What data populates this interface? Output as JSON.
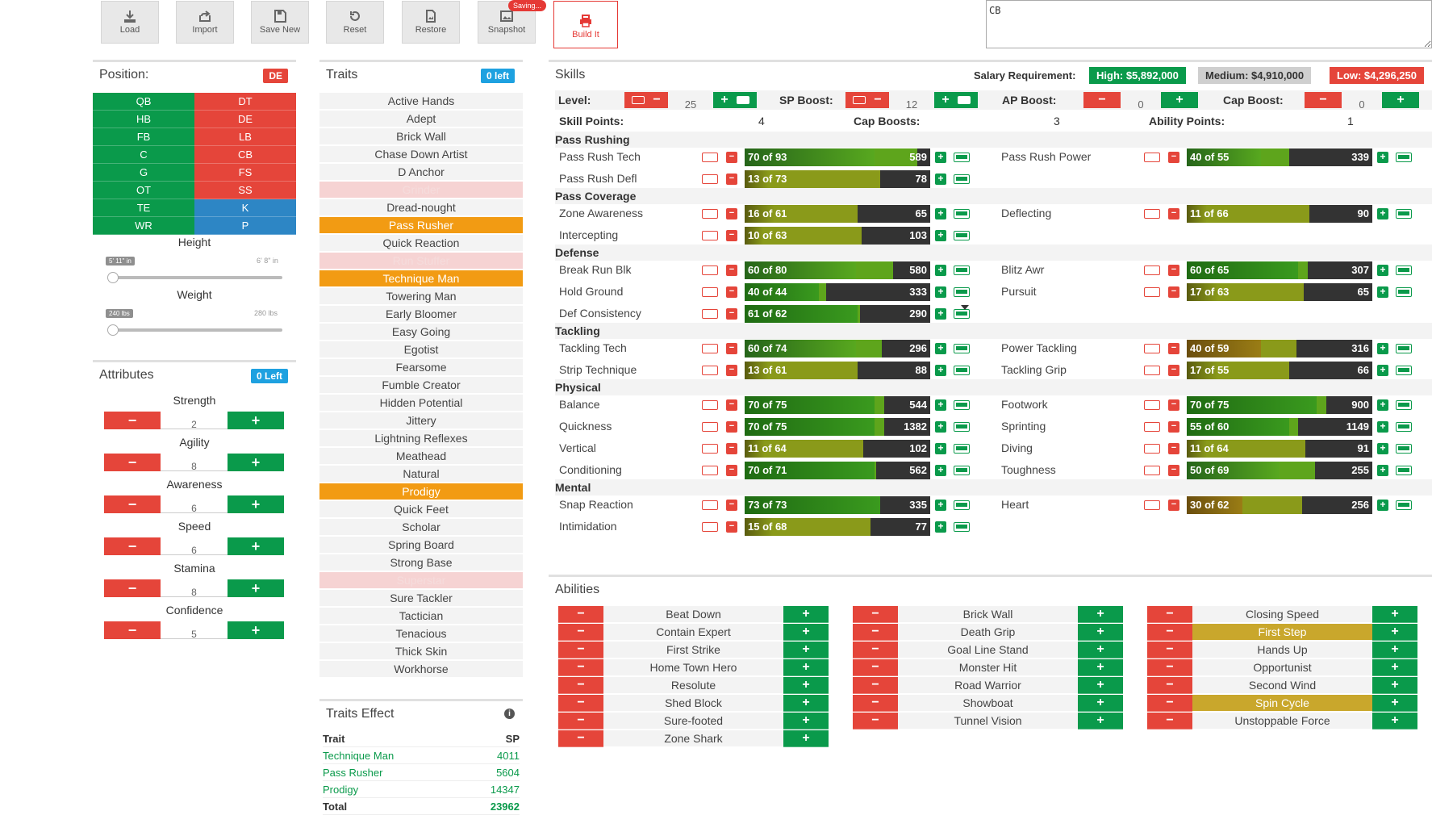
{
  "toolbar": {
    "load": "Load",
    "import": "Import",
    "save_new": "Save New",
    "reset": "Reset",
    "restore": "Restore",
    "snapshot": "Snapshot",
    "saving": "Saving...",
    "build": "Build It"
  },
  "cb_box": "CB",
  "position": {
    "title": "Position:",
    "badge": "DE",
    "left": [
      "QB",
      "HB",
      "FB",
      "C",
      "G",
      "OT",
      "TE",
      "WR"
    ],
    "right": [
      "DT",
      "DE",
      "LB",
      "CB",
      "FS",
      "SS",
      "K",
      "P"
    ],
    "height_label": "Height",
    "height_min": "5' 11\" in",
    "height_max": "6' 8\" in",
    "weight_label": "Weight",
    "weight_min": "240 lbs",
    "weight_max": "280 lbs"
  },
  "attributes": {
    "title": "Attributes",
    "badge": "0 Left",
    "items": [
      {
        "name": "Strength",
        "value": "2"
      },
      {
        "name": "Agility",
        "value": "8"
      },
      {
        "name": "Awareness",
        "value": "6"
      },
      {
        "name": "Speed",
        "value": "6"
      },
      {
        "name": "Stamina",
        "value": "8"
      },
      {
        "name": "Confidence",
        "value": "5"
      }
    ]
  },
  "traits": {
    "title": "Traits",
    "badge": "0 left",
    "items": [
      {
        "name": "Active Hands",
        "state": "normal"
      },
      {
        "name": "Adept",
        "state": "normal"
      },
      {
        "name": "Brick Wall",
        "state": "normal"
      },
      {
        "name": "Chase Down Artist",
        "state": "normal"
      },
      {
        "name": "D Anchor",
        "state": "normal"
      },
      {
        "name": "Grinder",
        "state": "disabled"
      },
      {
        "name": "Dread-nought",
        "state": "normal"
      },
      {
        "name": "Pass Rusher",
        "state": "selected"
      },
      {
        "name": "Quick Reaction",
        "state": "normal"
      },
      {
        "name": "Run Stuffer",
        "state": "disabled"
      },
      {
        "name": "Technique Man",
        "state": "selected"
      },
      {
        "name": "Towering Man",
        "state": "normal"
      },
      {
        "name": "Early Bloomer",
        "state": "normal"
      },
      {
        "name": "Easy Going",
        "state": "normal"
      },
      {
        "name": "Egotist",
        "state": "normal"
      },
      {
        "name": "Fearsome",
        "state": "normal"
      },
      {
        "name": "Fumble Creator",
        "state": "normal"
      },
      {
        "name": "Hidden Potential",
        "state": "normal"
      },
      {
        "name": "Jittery",
        "state": "normal"
      },
      {
        "name": "Lightning Reflexes",
        "state": "normal"
      },
      {
        "name": "Meathead",
        "state": "normal"
      },
      {
        "name": "Natural",
        "state": "normal"
      },
      {
        "name": "Prodigy",
        "state": "selected"
      },
      {
        "name": "Quick Feet",
        "state": "normal"
      },
      {
        "name": "Scholar",
        "state": "normal"
      },
      {
        "name": "Spring Board",
        "state": "normal"
      },
      {
        "name": "Strong Base",
        "state": "normal"
      },
      {
        "name": "Superstar",
        "state": "disabled"
      },
      {
        "name": "Sure Tackler",
        "state": "normal"
      },
      {
        "name": "Tactician",
        "state": "normal"
      },
      {
        "name": "Tenacious",
        "state": "normal"
      },
      {
        "name": "Thick Skin",
        "state": "normal"
      },
      {
        "name": "Workhorse",
        "state": "normal"
      }
    ]
  },
  "traits_effect": {
    "title": "Traits Effect",
    "col_trait": "Trait",
    "col_sp": "SP",
    "rows": [
      {
        "trait": "Technique Man",
        "sp": "4011"
      },
      {
        "trait": "Pass Rusher",
        "sp": "5604"
      },
      {
        "trait": "Prodigy",
        "sp": "14347"
      }
    ],
    "total_label": "Total",
    "total_value": "23962"
  },
  "skills": {
    "title": "Skills",
    "salary_label": "Salary Requirement:",
    "salary_high": "High: $5,892,000",
    "salary_medium": "Medium: $4,910,000",
    "salary_low": "Low: $4,296,250",
    "level_label": "Level:",
    "level_value": "25",
    "sp_boost_label": "SP Boost:",
    "sp_boost_value": "12",
    "ap_boost_label": "AP Boost:",
    "ap_boost_value": "0",
    "cap_boost_label": "Cap Boost:",
    "cap_boost_value": "0",
    "skill_points_label": "Skill Points:",
    "skill_points_value": "4",
    "cap_boosts_label": "Cap Boosts:",
    "cap_boosts_value": "3",
    "ability_points_label": "Ability Points:",
    "ability_points_value": "1",
    "categories": [
      {
        "name": "Pass Rushing",
        "rows": [
          [
            {
              "name": "Pass Rush Tech",
              "label": "70 of 93",
              "cost": "589",
              "cur": 70,
              "cap": 93
            },
            {
              "name": "Pass Rush Power",
              "label": "40 of 55",
              "cost": "339",
              "cur": 40,
              "cap": 55
            }
          ],
          [
            {
              "name": "Pass Rush Defl",
              "label": "13 of 73",
              "cost": "78",
              "cur": 13,
              "cap": 73
            },
            null
          ]
        ]
      },
      {
        "name": "Pass Coverage",
        "rows": [
          [
            {
              "name": "Zone Awareness",
              "label": "16 of 61",
              "cost": "65",
              "cur": 16,
              "cap": 61
            },
            {
              "name": "Deflecting",
              "label": "11 of 66",
              "cost": "90",
              "cur": 11,
              "cap": 66
            }
          ],
          [
            {
              "name": "Intercepting",
              "label": "10 of 63",
              "cost": "103",
              "cur": 10,
              "cap": 63
            },
            null
          ]
        ]
      },
      {
        "name": "Defense",
        "rows": [
          [
            {
              "name": "Break Run Blk",
              "label": "60 of 80",
              "cost": "580",
              "cur": 60,
              "cap": 80
            },
            {
              "name": "Blitz Awr",
              "label": "60 of 65",
              "cost": "307",
              "cur": 60,
              "cap": 65
            }
          ],
          [
            {
              "name": "Hold Ground",
              "label": "40 of 44",
              "cost": "333",
              "cur": 40,
              "cap": 44
            },
            {
              "name": "Pursuit",
              "label": "17 of 63",
              "cost": "65",
              "cur": 17,
              "cap": 63
            }
          ],
          [
            {
              "name": "Def Consistency",
              "label": "61 of 62",
              "cost": "290",
              "cur": 61,
              "cap": 62
            },
            null
          ]
        ]
      },
      {
        "name": "Tackling",
        "rows": [
          [
            {
              "name": "Tackling Tech",
              "label": "60 of 74",
              "cost": "296",
              "cur": 60,
              "cap": 74
            },
            {
              "name": "Power Tackling",
              "label": "40 of 59",
              "cost": "316",
              "cur": 40,
              "cap": 59
            }
          ],
          [
            {
              "name": "Strip Technique",
              "label": "13 of 61",
              "cost": "88",
              "cur": 13,
              "cap": 61
            },
            {
              "name": "Tackling Grip",
              "label": "17 of 55",
              "cost": "66",
              "cur": 17,
              "cap": 55
            }
          ]
        ]
      },
      {
        "name": "Physical",
        "rows": [
          [
            {
              "name": "Balance",
              "label": "70 of 75",
              "cost": "544",
              "cur": 70,
              "cap": 75
            },
            {
              "name": "Footwork",
              "label": "70 of 75",
              "cost": "900",
              "cur": 70,
              "cap": 75
            }
          ],
          [
            {
              "name": "Quickness",
              "label": "70 of 75",
              "cost": "1382",
              "cur": 70,
              "cap": 75
            },
            {
              "name": "Sprinting",
              "label": "55 of 60",
              "cost": "1149",
              "cur": 55,
              "cap": 60
            }
          ],
          [
            {
              "name": "Vertical",
              "label": "11 of 64",
              "cost": "102",
              "cur": 11,
              "cap": 64
            },
            {
              "name": "Diving",
              "label": "11 of 64",
              "cost": "91",
              "cur": 11,
              "cap": 64
            }
          ],
          [
            {
              "name": "Conditioning",
              "label": "70 of 71",
              "cost": "562",
              "cur": 70,
              "cap": 71
            },
            {
              "name": "Toughness",
              "label": "50 of 69",
              "cost": "255",
              "cur": 50,
              "cap": 69
            }
          ]
        ]
      },
      {
        "name": "Mental",
        "rows": [
          [
            {
              "name": "Snap Reaction",
              "label": "73 of 73",
              "cost": "335",
              "cur": 73,
              "cap": 73
            },
            {
              "name": "Heart",
              "label": "30 of 62",
              "cost": "256",
              "cur": 30,
              "cap": 62
            }
          ],
          [
            {
              "name": "Intimidation",
              "label": "15 of 68",
              "cost": "77",
              "cur": 15,
              "cap": 68
            },
            null
          ]
        ]
      }
    ]
  },
  "abilities": {
    "title": "Abilities",
    "columns": [
      [
        {
          "name": "Beat Down",
          "gold": false
        },
        {
          "name": "Contain Expert",
          "gold": false
        },
        {
          "name": "First Strike",
          "gold": false
        },
        {
          "name": "Home Town Hero",
          "gold": false
        },
        {
          "name": "Resolute",
          "gold": false
        },
        {
          "name": "Shed Block",
          "gold": false
        },
        {
          "name": "Sure-footed",
          "gold": false
        },
        {
          "name": "Zone Shark",
          "gold": false
        }
      ],
      [
        {
          "name": "Brick Wall",
          "gold": false
        },
        {
          "name": "Death Grip",
          "gold": false
        },
        {
          "name": "Goal Line Stand",
          "gold": false
        },
        {
          "name": "Monster Hit",
          "gold": false
        },
        {
          "name": "Road Warrior",
          "gold": false
        },
        {
          "name": "Showboat",
          "gold": false
        },
        {
          "name": "Tunnel Vision",
          "gold": false
        }
      ],
      [
        {
          "name": "Closing Speed",
          "gold": false
        },
        {
          "name": "First Step",
          "gold": true
        },
        {
          "name": "Hands Up",
          "gold": false
        },
        {
          "name": "Opportunist",
          "gold": false
        },
        {
          "name": "Second Wind",
          "gold": false
        },
        {
          "name": "Spin Cycle",
          "gold": true
        },
        {
          "name": "Unstoppable Force",
          "gold": false
        }
      ]
    ]
  }
}
